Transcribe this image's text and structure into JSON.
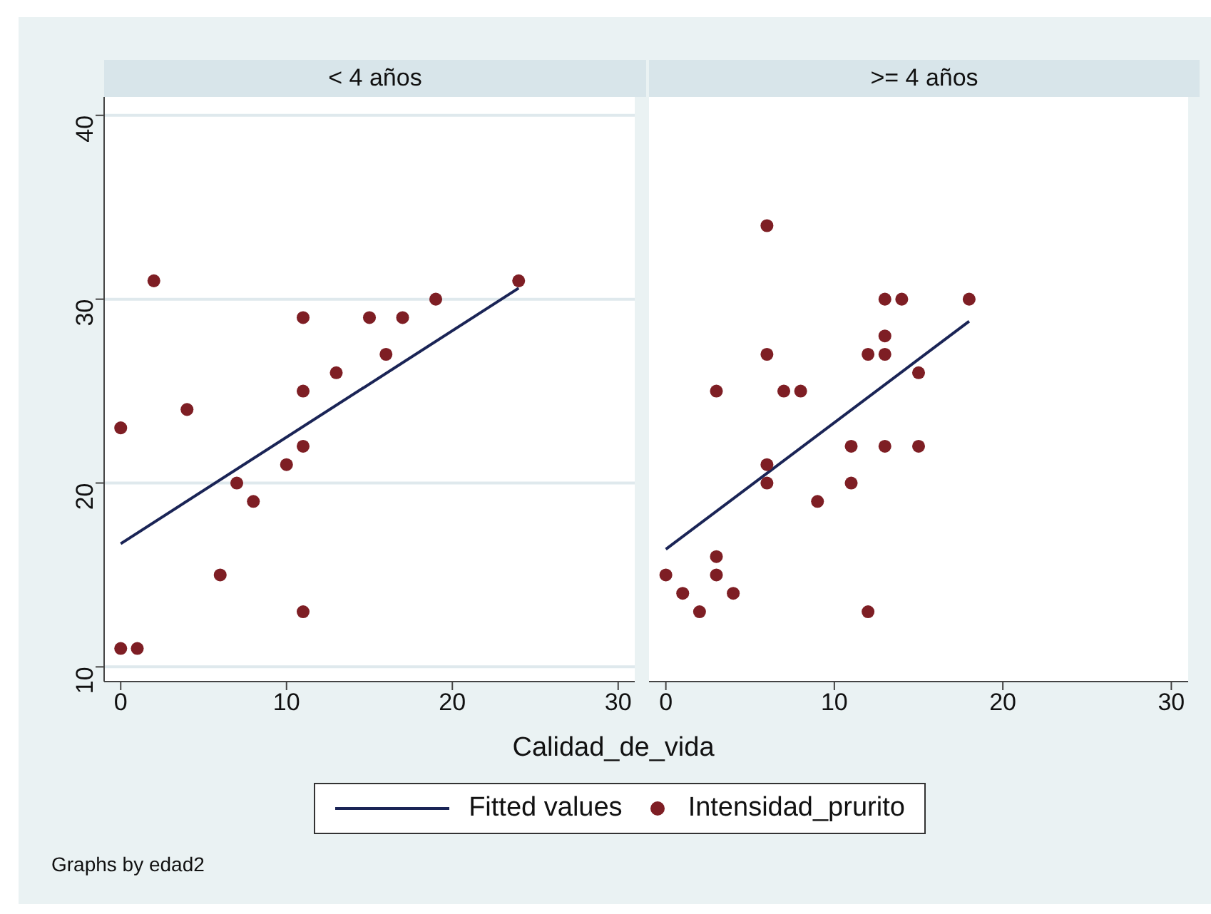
{
  "chart_data": [
    {
      "type": "scatter",
      "title": "< 4 años",
      "xlabel": "Calidad_de_vida",
      "xlim": [
        -1,
        31
      ],
      "xticks": [
        0,
        10,
        20,
        30
      ],
      "ylim": [
        9.2,
        41
      ],
      "yticks": [
        10,
        20,
        30,
        40
      ],
      "grid": "y",
      "legend": "bottom",
      "annotations": [
        "Graphs by edad2"
      ],
      "series": [
        {
          "name": "Fitted values",
          "type": "line",
          "color": "#1a2456",
          "x": [
            0,
            24
          ],
          "values": [
            16.7,
            30.6
          ],
          "marker": "none",
          "line_style": "solid"
        },
        {
          "name": "Intensidad_prurito",
          "type": "scatter",
          "color": "#7e1e24",
          "marker": "circle",
          "x": [
            0,
            1,
            0,
            2,
            4,
            6,
            7,
            8,
            10,
            11,
            11,
            11,
            11,
            13,
            15,
            16,
            17,
            19,
            24
          ],
          "values": [
            11,
            11,
            23,
            31,
            24,
            15,
            20,
            19,
            21,
            22,
            25,
            29,
            13,
            26,
            29,
            27,
            29,
            30,
            31
          ]
        }
      ]
    },
    {
      "type": "scatter",
      "title": ">= 4 años",
      "xlim": [
        -1,
        31
      ],
      "xticks": [
        0,
        10,
        20,
        30
      ],
      "ylim": [
        9.2,
        41
      ],
      "yticks": [
        10,
        20,
        30,
        40
      ],
      "grid": "y",
      "tick_labels": "x",
      "series": [
        {
          "type": "line",
          "color": "#1a2456",
          "x": [
            0,
            18
          ],
          "values": [
            16.4,
            28.8
          ],
          "marker": "none",
          "line_style": "solid"
        },
        {
          "type": "scatter",
          "color": "#7e1e24",
          "marker": "circle",
          "x": [
            0,
            1,
            2,
            3,
            3,
            3,
            4,
            6,
            6,
            6,
            6,
            7,
            8,
            9,
            11,
            11,
            12,
            12,
            13,
            13,
            13,
            13,
            14,
            15,
            15,
            18
          ],
          "values": [
            15,
            14,
            13,
            16,
            15,
            25,
            14,
            34,
            27,
            21,
            20,
            25,
            25,
            19,
            22,
            20,
            27,
            13,
            30,
            28,
            27,
            22,
            30,
            26,
            22,
            30
          ]
        }
      ]
    }
  ]
}
